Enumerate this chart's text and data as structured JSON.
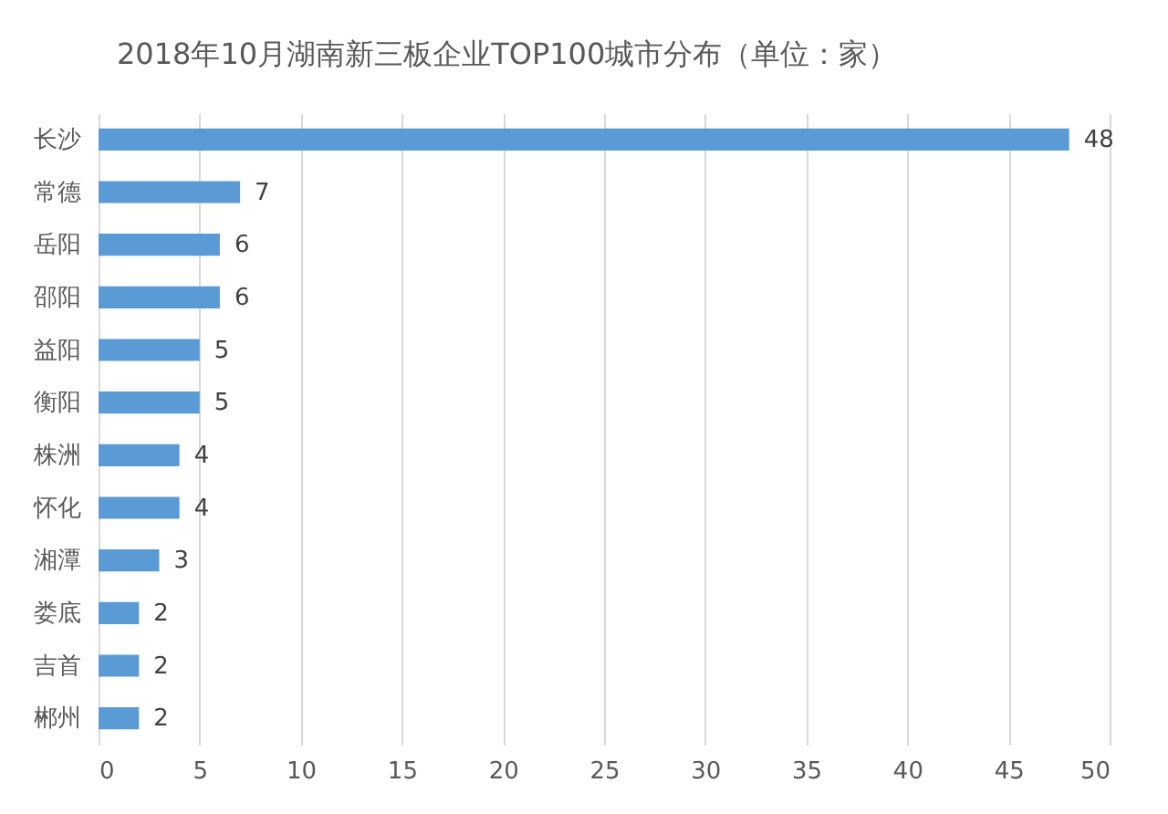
{
  "chart_data": {
    "type": "bar",
    "orientation": "horizontal",
    "title": "2018年10月湖南新三板企业TOP100城市分布（单位：家）",
    "categories": [
      "长沙",
      "常德",
      "岳阳",
      "邵阳",
      "益阳",
      "衡阳",
      "株洲",
      "怀化",
      "湘潭",
      "娄底",
      "吉首",
      "郴州"
    ],
    "values": [
      48,
      7,
      6,
      6,
      5,
      5,
      4,
      4,
      3,
      2,
      2,
      2
    ],
    "color": "#5b9bd5",
    "xlim": [
      0,
      50
    ],
    "xticks": [
      0,
      5,
      10,
      15,
      20,
      25,
      30,
      35,
      40,
      45,
      50
    ],
    "grid": "x",
    "data_labels": true
  }
}
